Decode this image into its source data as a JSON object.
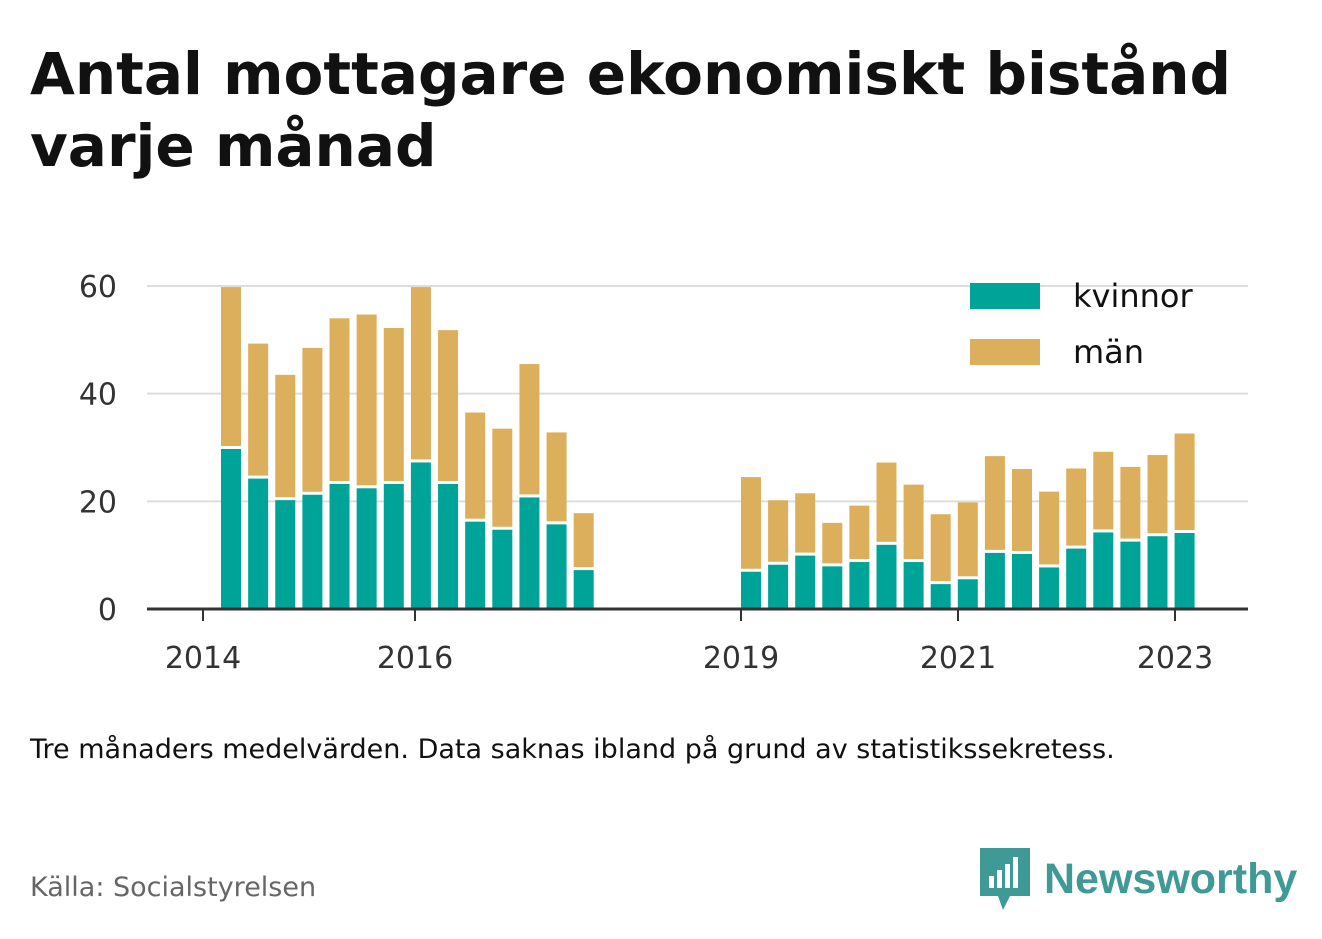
{
  "title": "Antal mottagare ekonomiskt bistånd varje månad",
  "note": "Tre månaders medelvärden. Data saknas ibland på grund av statistikssekretess.",
  "source": "Källa: Socialstyrelsen",
  "brand": "Newsworthy",
  "colors": {
    "kvinnor": "#00a398",
    "man": "#dcaf5c",
    "grid": "#dddddd",
    "axis": "#333333",
    "brand": "#3f9a95"
  },
  "chart_data": {
    "type": "bar",
    "stacked": true,
    "ylim": [
      0,
      60
    ],
    "yticks": [
      0,
      20,
      40,
      60
    ],
    "xticks": [
      "2014",
      "2016",
      "2019",
      "2021",
      "2023"
    ],
    "grid": true,
    "legend_position": "top-right",
    "series": [
      {
        "name": "kvinnor",
        "values": [
          30,
          24.5,
          20.5,
          21.5,
          23.5,
          22.7,
          23.5,
          27.5,
          23.5,
          16.5,
          15,
          21,
          16,
          7.5,
          7.2,
          8.5,
          10.2,
          8.2,
          9,
          12.2,
          9,
          4.9,
          5.8,
          10.7,
          10.5,
          8,
          11.5,
          14.5,
          12.8,
          13.8,
          14.4
        ]
      },
      {
        "name": "män",
        "values": [
          29.8,
          24.8,
          23,
          27,
          30.5,
          32,
          28.7,
          32.3,
          28.3,
          20,
          18.5,
          24.5,
          16.8,
          10.3,
          17.3,
          11.7,
          11.3,
          7.8,
          10.2,
          15,
          14.1,
          12.7,
          14,
          17.7,
          15.5,
          13.8,
          14.6,
          14.7,
          13.6,
          14.8,
          18.2
        ]
      }
    ]
  }
}
